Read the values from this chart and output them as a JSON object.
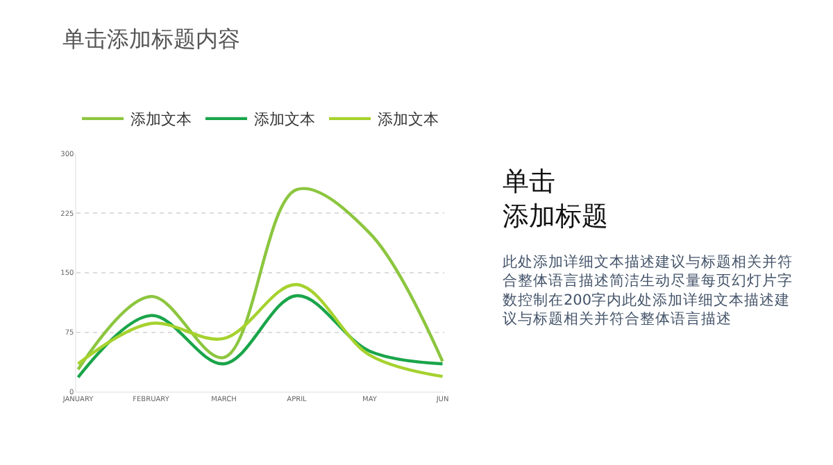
{
  "chart_data": {
    "type": "line",
    "title": "单击添加标题内容",
    "categories": [
      "JANUARY",
      "FEBRUARY",
      "MARCH",
      "APRIL",
      "MAY",
      "JUN"
    ],
    "series": [
      {
        "name": "添加文本",
        "color": "#8cc63f",
        "values": [
          28,
          120,
          43,
          255,
          200,
          38
        ]
      },
      {
        "name": "添加文本",
        "color": "#1aa54a",
        "values": [
          18,
          96,
          35,
          121,
          51,
          35
        ]
      },
      {
        "name": "添加文本",
        "color": "#a6d22e",
        "values": [
          35,
          86,
          67,
          135,
          46,
          19
        ]
      }
    ],
    "ylim": [
      0,
      300
    ],
    "yticks": [
      0,
      75,
      150,
      225,
      300
    ],
    "grid": "y",
    "legend": "top left",
    "line_style": "solid",
    "annotations": [
      "单击",
      "添加标题",
      "此处添加详细文本描述建议与标题相关并符合整体语言描述简洁生动尽量每页幻灯片字数控制在200字内此处添加详细文本描述建议与标题相关并符合整体语言描述"
    ]
  }
}
